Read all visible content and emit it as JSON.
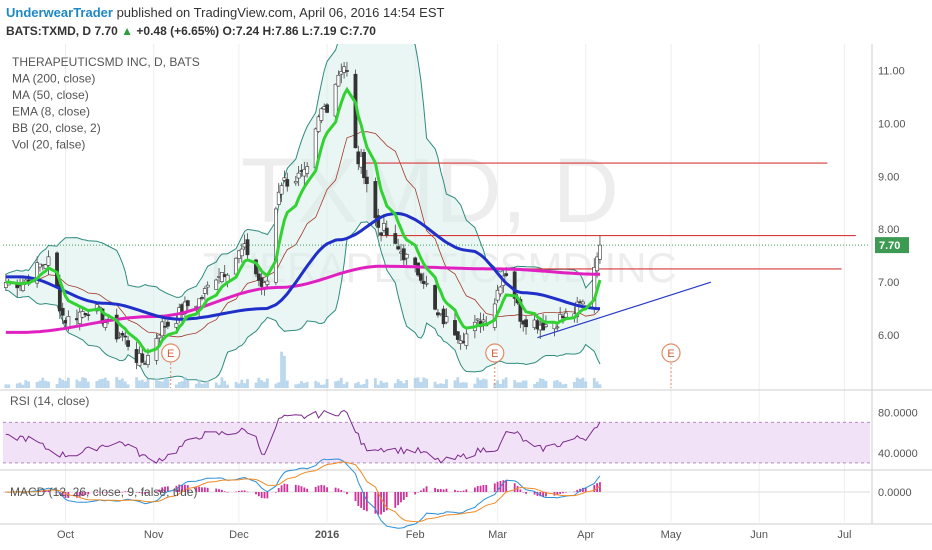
{
  "header": {
    "author": "UnderwearTrader",
    "published_text": "published on TradingView.com, April 06, 2016 14:54 EST",
    "symbol": "BATS:TXMD, D",
    "last": "7.70",
    "change_arrow": "▲",
    "change": "+0.48 (+6.65%)",
    "o_label": "O:",
    "o": "7.24",
    "h_label": "H:",
    "h": "7.86",
    "l_label": "L:",
    "l": "7.19",
    "c_label": "C:",
    "c": "7.70"
  },
  "legend": [
    "THERAPEUTICSMD INC, D, BATS",
    "MA (200, close)",
    "MA (50, close)",
    "EMA (8, close)",
    "BB (20, close, 2)",
    "Vol (20, false)"
  ],
  "watermark": {
    "main": "TXMD, D",
    "sub": "THERAPEUTICSMD INC"
  },
  "colors": {
    "up": "#2e9e3e",
    "down": "#c0392b",
    "ma200": "#e020c0",
    "ma50": "#1f2fc8",
    "ema8": "#32d232",
    "bb": "#2e8b7e",
    "bb_fill": "#d8eeeb",
    "hline": "#d63a3a",
    "trend": "#2a3ac8",
    "rsi": "#7b2a8c",
    "rsi_band": "#f2e2f8",
    "macd": "#2a8fd6",
    "signal": "#f08a24",
    "hist": "#d0309a",
    "volume": "#a9cde8"
  },
  "chart_data": [
    {
      "type": "candlestick",
      "title": "THERAPEUTICSMD INC, D, BATS",
      "x_ticks": [
        "Oct",
        "Nov",
        "Dec",
        "2016",
        "Feb",
        "Mar",
        "Apr",
        "May",
        "Jun",
        "Jul"
      ],
      "y_ticks": [
        "11.00",
        "10.00",
        "9.00",
        "8.00",
        "7.00",
        "6.00"
      ],
      "ylim": [
        5.0,
        11.5
      ],
      "last_price_label": "7.70",
      "price_anchors": [
        {
          "date": "2015-09-15",
          "price": 7.0
        },
        {
          "date": "2015-09-25",
          "price": 7.4
        },
        {
          "date": "2015-10-01",
          "price": 6.3
        },
        {
          "date": "2015-10-10",
          "price": 6.5
        },
        {
          "date": "2015-10-20",
          "price": 6.0
        },
        {
          "date": "2015-10-28",
          "price": 5.5
        },
        {
          "date": "2015-11-05",
          "price": 6.2
        },
        {
          "date": "2015-11-15",
          "price": 6.6
        },
        {
          "date": "2015-11-25",
          "price": 7.2
        },
        {
          "date": "2015-12-03",
          "price": 7.6
        },
        {
          "date": "2015-12-10",
          "price": 6.9
        },
        {
          "date": "2015-12-16",
          "price": 8.9
        },
        {
          "date": "2015-12-24",
          "price": 9.0
        },
        {
          "date": "2015-12-31",
          "price": 10.3
        },
        {
          "date": "2016-01-07",
          "price": 11.1
        },
        {
          "date": "2016-01-12",
          "price": 9.3
        },
        {
          "date": "2016-01-20",
          "price": 8.0
        },
        {
          "date": "2016-01-26",
          "price": 7.6
        },
        {
          "date": "2016-02-02",
          "price": 7.2
        },
        {
          "date": "2016-02-10",
          "price": 6.3
        },
        {
          "date": "2016-02-18",
          "price": 6.0
        },
        {
          "date": "2016-02-26",
          "price": 6.3
        },
        {
          "date": "2016-03-04",
          "price": 7.2
        },
        {
          "date": "2016-03-10",
          "price": 6.3
        },
        {
          "date": "2016-03-18",
          "price": 6.2
        },
        {
          "date": "2016-03-25",
          "price": 6.35
        },
        {
          "date": "2016-04-01",
          "price": 6.6
        },
        {
          "date": "2016-04-06",
          "price": 7.7
        }
      ],
      "ma200_anchors": [
        {
          "date": "2015-09-15",
          "price": 6.05
        },
        {
          "date": "2015-11-01",
          "price": 6.35
        },
        {
          "date": "2015-12-15",
          "price": 6.9
        },
        {
          "date": "2016-01-20",
          "price": 7.3
        },
        {
          "date": "2016-03-01",
          "price": 7.25
        },
        {
          "date": "2016-04-06",
          "price": 7.15
        }
      ],
      "ma50_anchors": [
        {
          "date": "2015-09-15",
          "price": 7.1
        },
        {
          "date": "2015-10-15",
          "price": 6.6
        },
        {
          "date": "2015-11-10",
          "price": 6.3
        },
        {
          "date": "2015-12-10",
          "price": 6.5
        },
        {
          "date": "2016-01-05",
          "price": 7.8
        },
        {
          "date": "2016-01-25",
          "price": 8.3
        },
        {
          "date": "2016-02-20",
          "price": 7.6
        },
        {
          "date": "2016-03-10",
          "price": 6.8
        },
        {
          "date": "2016-04-06",
          "price": 6.5
        }
      ],
      "horizontal_lines": [
        {
          "price": 9.25,
          "from": "2016-01-12",
          "to": "2016-06-25"
        },
        {
          "price": 7.88,
          "from": "2016-01-20",
          "to": "2016-07-05"
        },
        {
          "price": 7.25,
          "from": "2016-03-05",
          "to": "2016-06-30"
        }
      ],
      "trend_line": {
        "from": {
          "date": "2016-03-15",
          "price": 5.95
        },
        "to": {
          "date": "2016-05-15",
          "price": 7.0
        }
      },
      "earnings_markers": [
        {
          "label": "E",
          "date": "2015-11-07"
        },
        {
          "label": "E",
          "date": "2016-02-29"
        },
        {
          "label": "E",
          "date": "2016-05-01"
        }
      ]
    },
    {
      "type": "line",
      "title": "RSI (14, close)",
      "y_ticks": [
        "80.0000",
        "40.0000"
      ],
      "ylim": [
        25,
        100
      ],
      "band": [
        30,
        70
      ],
      "series": [
        {
          "name": "RSI (14, close)",
          "anchors": [
            {
              "date": "2015-09-15",
              "value": 55
            },
            {
              "date": "2015-10-01",
              "value": 38
            },
            {
              "date": "2015-10-20",
              "value": 50
            },
            {
              "date": "2015-11-01",
              "value": 33
            },
            {
              "date": "2015-11-20",
              "value": 58
            },
            {
              "date": "2015-12-05",
              "value": 62
            },
            {
              "date": "2015-12-10",
              "value": 40
            },
            {
              "date": "2015-12-16",
              "value": 74
            },
            {
              "date": "2016-01-07",
              "value": 80
            },
            {
              "date": "2016-01-15",
              "value": 45
            },
            {
              "date": "2016-02-01",
              "value": 42
            },
            {
              "date": "2016-02-10",
              "value": 32
            },
            {
              "date": "2016-03-01",
              "value": 45
            },
            {
              "date": "2016-03-05",
              "value": 62
            },
            {
              "date": "2016-03-15",
              "value": 44
            },
            {
              "date": "2016-04-01",
              "value": 55
            },
            {
              "date": "2016-04-06",
              "value": 70
            }
          ]
        }
      ]
    },
    {
      "type": "macd",
      "title": "MACD (12, 26, close, 9, false, true)",
      "y_ticks": [
        "0.0000"
      ],
      "ylim": [
        -0.9,
        0.6
      ]
    }
  ]
}
